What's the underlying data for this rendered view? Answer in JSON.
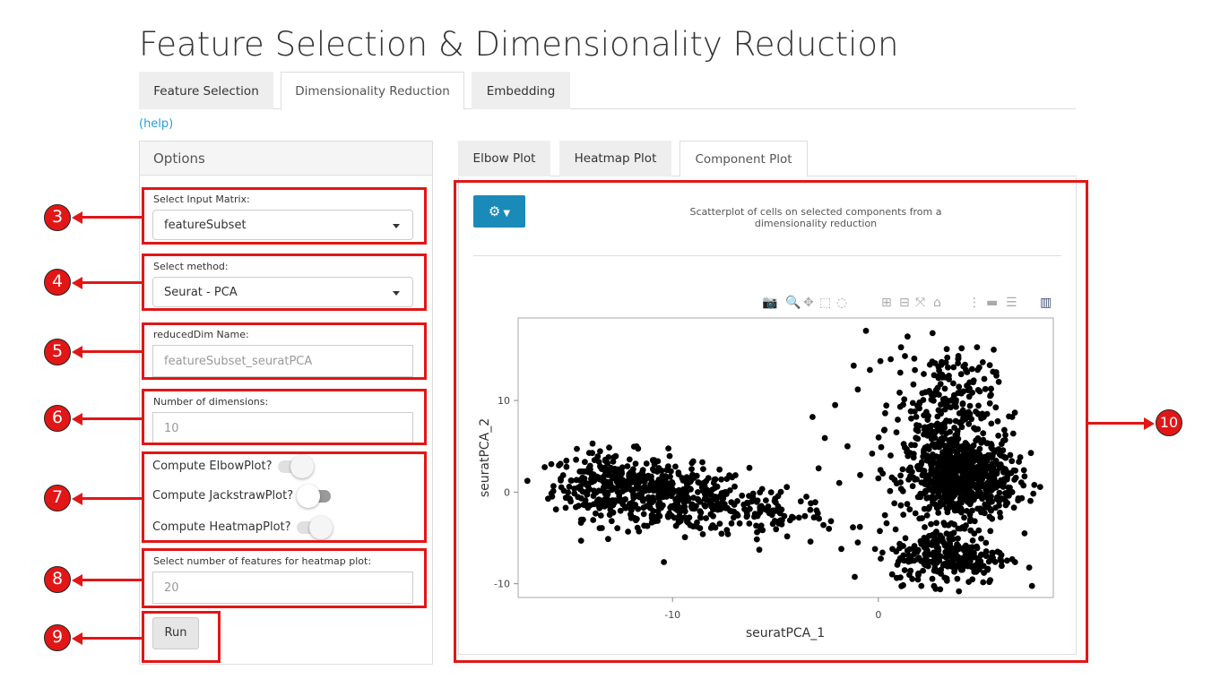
{
  "page_title": "Feature Selection & Dimensionality Reduction",
  "main_tabs": [
    {
      "label": "Feature Selection"
    },
    {
      "label": "Dimensionality Reduction",
      "active": true
    },
    {
      "label": "Embedding"
    }
  ],
  "help_link": "(help)",
  "options": {
    "header": "Options",
    "input_matrix_label": "Select Input Matrix:",
    "input_matrix_value": "featureSubset",
    "method_label": "Select method:",
    "method_value": "Seurat - PCA",
    "reduced_dim_label": "reducedDim Name:",
    "reduced_dim_value": "featureSubset_seuratPCA",
    "num_dims_label": "Number of dimensions:",
    "num_dims_value": "10",
    "toggles": [
      {
        "label": "Compute ElbowPlot?",
        "on": true
      },
      {
        "label": "Compute JackstrawPlot?",
        "on": false
      },
      {
        "label": "Compute HeatmapPlot?",
        "on": true
      }
    ],
    "heatmap_features_label": "Select number of features for heatmap plot:",
    "heatmap_features_value": "20",
    "run_label": "Run"
  },
  "plot_tabs": [
    {
      "label": "Elbow Plot"
    },
    {
      "label": "Heatmap Plot"
    },
    {
      "label": "Component Plot",
      "active": true
    }
  ],
  "plot": {
    "description": "Scatterplot of cells on selected components from a dimensionality reduction",
    "gear_icon": "gear-icon",
    "modebar_icons": [
      "camera-icon",
      "zoom-icon",
      "pan-icon",
      "box-select-icon",
      "lasso-icon",
      "zoom-in-icon",
      "zoom-out-icon",
      "autoscale-icon",
      "reset-axes-icon",
      "spike-lines-icon",
      "hover-closest-icon",
      "hover-compare-icon",
      "plotly-logo-icon"
    ]
  },
  "chart_data": {
    "type": "scatter",
    "title": "",
    "xlabel": "seuratPCA_1",
    "ylabel": "seuratPCA_2",
    "xlim": [
      -17.5,
      8.5
    ],
    "ylim": [
      -11.5,
      19
    ],
    "xticks": [
      -10,
      0
    ],
    "yticks": [
      -10,
      0,
      10
    ],
    "point_color": "#000000",
    "clusters": [
      {
        "name": "",
        "cx": -13,
        "cy": 0.8,
        "sx": 1.4,
        "sy": 1.8,
        "n": 300
      },
      {
        "name": "",
        "cx": -9.5,
        "cy": -0.8,
        "sx": 1.6,
        "sy": 1.7,
        "n": 280
      },
      {
        "name": "",
        "cx": -5.5,
        "cy": -2.3,
        "sx": 1.5,
        "sy": 1.4,
        "n": 90
      },
      {
        "name": "",
        "cx": 4.0,
        "cy": 1.5,
        "sx": 1.3,
        "sy": 2.3,
        "n": 700
      },
      {
        "name": "",
        "cx": 3.2,
        "cy": 9.5,
        "sx": 1.2,
        "sy": 3.0,
        "n": 230
      },
      {
        "name": "",
        "cx": 3.5,
        "cy": -7.0,
        "sx": 1.4,
        "sy": 1.5,
        "n": 260
      }
    ],
    "sparse_points": [
      {
        "x": -3.2,
        "y": 8.2
      },
      {
        "x": -2.1,
        "y": 9.5
      },
      {
        "x": -1.5,
        "y": 5.0
      },
      {
        "x": -1.0,
        "y": 11.2
      },
      {
        "x": -0.6,
        "y": 17.6
      },
      {
        "x": -1.2,
        "y": 13.8
      },
      {
        "x": -0.3,
        "y": 4.2
      },
      {
        "x": -2.9,
        "y": 2.6
      },
      {
        "x": -3.5,
        "y": -0.5
      },
      {
        "x": -2.4,
        "y": -4.0
      },
      {
        "x": -3.3,
        "y": -5.4
      },
      {
        "x": -1.8,
        "y": -6.2
      },
      {
        "x": -1.0,
        "y": -5.5
      },
      {
        "x": 0.3,
        "y": 6.8
      },
      {
        "x": 0.6,
        "y": 14.5
      },
      {
        "x": 0.0,
        "y": 1.5
      },
      {
        "x": 0.4,
        "y": -3.4
      },
      {
        "x": 6.5,
        "y": 8.2
      },
      {
        "x": 7.1,
        "y": -4.5
      },
      {
        "x": -4.2,
        "y": -2.7
      },
      {
        "x": -3.0,
        "y": -2.0
      },
      {
        "x": 0.2,
        "y": -6.6
      },
      {
        "x": 1.1,
        "y": 15.8
      },
      {
        "x": -2.6,
        "y": 5.9
      },
      {
        "x": -1.9,
        "y": 1.0
      },
      {
        "x": -0.9,
        "y": -3.8
      }
    ]
  },
  "annotations": [
    {
      "number": "3"
    },
    {
      "number": "4"
    },
    {
      "number": "5"
    },
    {
      "number": "6"
    },
    {
      "number": "7"
    },
    {
      "number": "8"
    },
    {
      "number": "9"
    },
    {
      "number": "10"
    }
  ]
}
